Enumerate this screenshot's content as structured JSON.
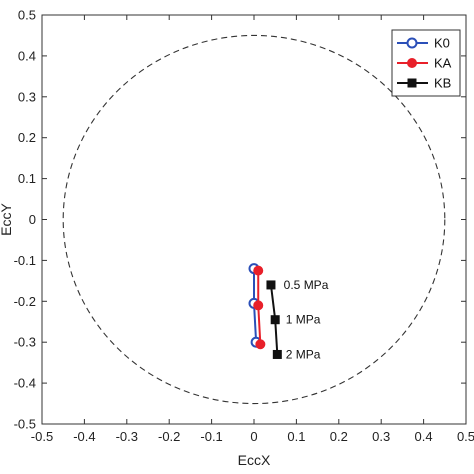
{
  "chart_data": {
    "type": "line",
    "xlabel": "EccX",
    "ylabel": "EccY",
    "xlim": [
      -0.5,
      0.5
    ],
    "ylim": [
      -0.5,
      0.5
    ],
    "xticks": [
      "-0.5",
      "-0.4",
      "-0.3",
      "-0.2",
      "-0.1",
      "0",
      "0.1",
      "0.2",
      "0.3",
      "0.4",
      "0.5"
    ],
    "yticks": [
      "0.5",
      "0.4",
      "0.3",
      "0.2",
      "0.1",
      "0",
      "-0.1",
      "-0.2",
      "-0.3",
      "-0.4",
      "-0.5"
    ],
    "grid": false,
    "legend_position": "top-right",
    "reference_circle": {
      "center": [
        0,
        0
      ],
      "radius": 0.45,
      "style": "dashed"
    },
    "series": [
      {
        "name": "K0",
        "color": "#2b4fb8",
        "marker": "open-circle",
        "points": [
          [
            0.0,
            -0.12
          ],
          [
            0.0,
            -0.205
          ],
          [
            0.005,
            -0.3
          ]
        ]
      },
      {
        "name": "KA",
        "color": "#e8202a",
        "marker": "filled-circle",
        "points": [
          [
            0.01,
            -0.125
          ],
          [
            0.01,
            -0.21
          ],
          [
            0.015,
            -0.305
          ]
        ]
      },
      {
        "name": "KB",
        "color": "#111111",
        "marker": "square",
        "points": [
          [
            0.04,
            -0.16
          ],
          [
            0.05,
            -0.245
          ],
          [
            0.055,
            -0.33
          ]
        ]
      }
    ],
    "annotations": [
      {
        "text": "0.5 MPa",
        "x": 0.07,
        "y": -0.16
      },
      {
        "text": "1 MPa",
        "x": 0.075,
        "y": -0.245
      },
      {
        "text": "2 MPa",
        "x": 0.075,
        "y": -0.33
      }
    ]
  }
}
